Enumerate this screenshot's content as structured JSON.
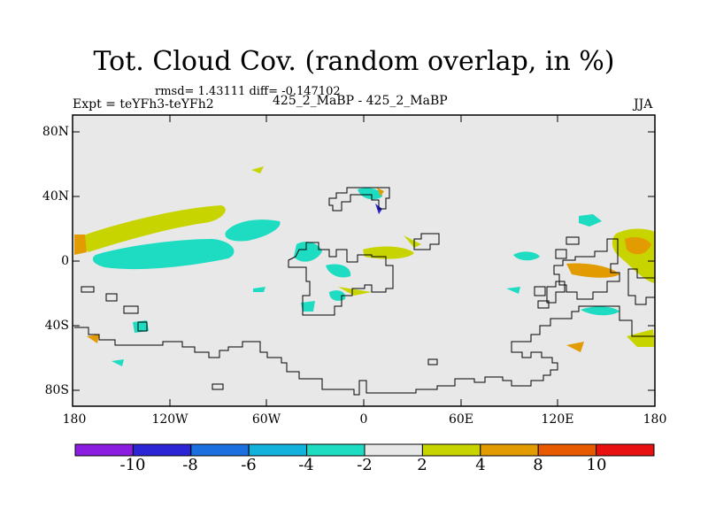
{
  "title": "Tot. Cloud Cov. (random overlap, in %)",
  "stats": "rmsd= 1.43111 diff= -0.147102",
  "expt": "Expt = teYFh3-teYFh2",
  "center_label": "425_2_MaBP - 425_2_MaBP",
  "season": "JJA",
  "lon_labels": [
    "180",
    "120W",
    "60W",
    "0",
    "60E",
    "120E",
    "180"
  ],
  "lat_labels": [
    "80N",
    "40N",
    "0",
    "40S",
    "80S"
  ],
  "colorbar": {
    "labels": [
      "-10",
      "-8",
      "-6",
      "-4",
      "-2",
      "2",
      "4",
      "8",
      "10"
    ],
    "colors": [
      "#8a1de0",
      "#2b25d6",
      "#1b6fde",
      "#12b2dd",
      "#1ddcc2",
      "#e8e8e8",
      "#c8d400",
      "#e29b00",
      "#e85a00",
      "#e81010"
    ]
  },
  "map_background": "#e8e8e8"
}
